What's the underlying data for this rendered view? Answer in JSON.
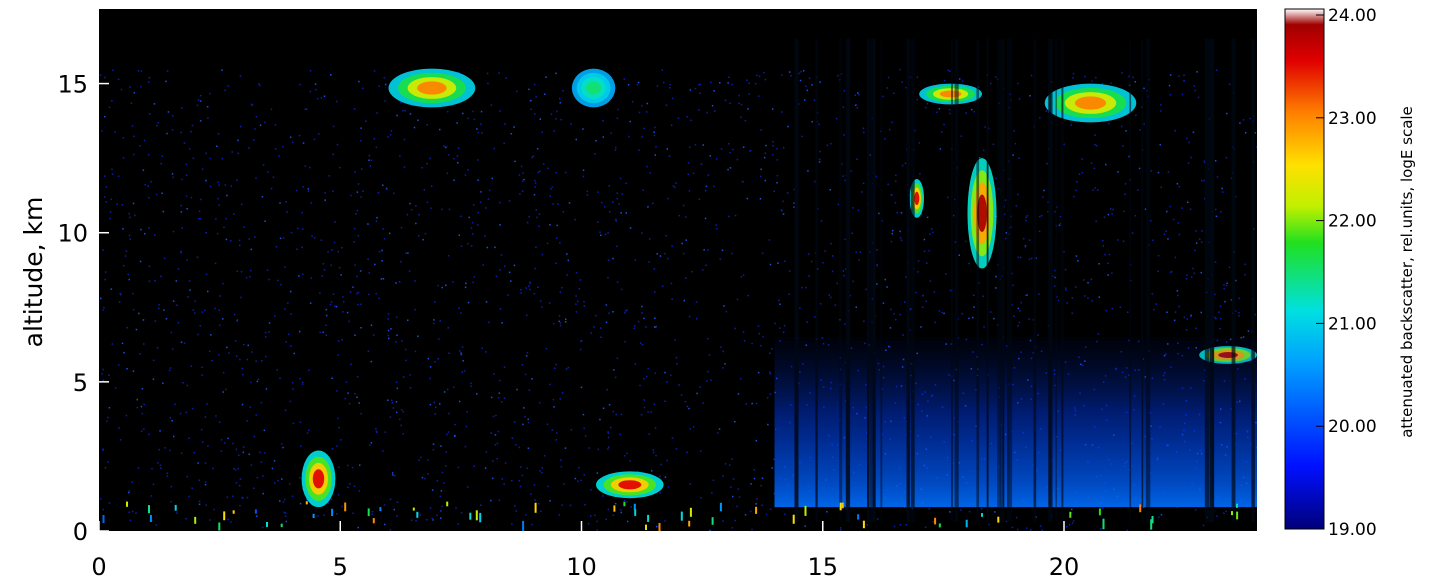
{
  "chart_data": {
    "type": "heatmap",
    "title": "",
    "xlabel": "",
    "ylabel": "altitude, km",
    "xlim": [
      0,
      24
    ],
    "ylim": [
      0,
      17.5
    ],
    "x_ticks": [
      0,
      5,
      10,
      15,
      20
    ],
    "x_tick_labels": [
      "0",
      "5",
      "10",
      "15",
      "20"
    ],
    "y_ticks": [
      0,
      5,
      10,
      15
    ],
    "y_tick_labels": [
      "0",
      "5",
      "10",
      "15"
    ],
    "colorbar": {
      "label": "attenuated backscatter, rel.units, logE scale",
      "range": [
        19.0,
        24.0
      ],
      "ticks": [
        19,
        20,
        21,
        22,
        23,
        24
      ],
      "tick_labels": [
        "19.00",
        "20.00",
        "21.00",
        "22.00",
        "23.00",
        "24.00"
      ],
      "colormap": "rainbow"
    },
    "features": [
      {
        "x": [
          6.0,
          7.8
        ],
        "y": [
          14.2,
          15.5
        ],
        "value": 23.0
      },
      {
        "x": [
          9.8,
          10.7
        ],
        "y": [
          14.2,
          15.5
        ],
        "value": 21.5
      },
      {
        "x": [
          17.0,
          18.3
        ],
        "y": [
          14.3,
          15.0
        ],
        "value": 23.0
      },
      {
        "x": [
          19.6,
          21.5
        ],
        "y": [
          13.7,
          15.0
        ],
        "value": 23.0
      },
      {
        "x": [
          16.8,
          17.1
        ],
        "y": [
          10.5,
          11.8
        ],
        "value": 23.5
      },
      {
        "x": [
          18.0,
          18.6
        ],
        "y": [
          8.8,
          12.5
        ],
        "value": 23.8
      },
      {
        "x": [
          22.8,
          24.0
        ],
        "y": [
          5.6,
          6.2
        ],
        "value": 23.8
      },
      {
        "x": [
          4.2,
          4.9
        ],
        "y": [
          0.8,
          2.7
        ],
        "value": 23.5
      },
      {
        "x": [
          10.3,
          11.7
        ],
        "y": [
          1.1,
          2.0
        ],
        "value": 23.5
      },
      {
        "x": [
          14.0,
          24.0
        ],
        "y": [
          0.8,
          6.5
        ],
        "value": 20.0
      }
    ]
  }
}
